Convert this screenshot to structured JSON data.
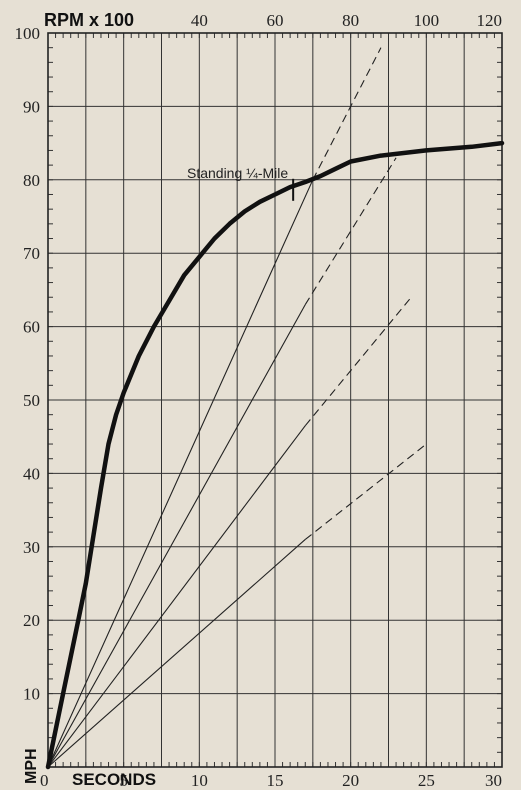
{
  "chart_data": {
    "type": "line",
    "title": "",
    "top_axis_title": "RPM x 100",
    "xlabel": "SECONDS",
    "ylabel": "MPH",
    "xlim": [
      0,
      30
    ],
    "ylim": [
      0,
      100
    ],
    "rpm_lim": [
      0,
      120
    ],
    "x_ticks": [
      "0",
      "5",
      "10",
      "15",
      "20",
      "25",
      "30"
    ],
    "x_tick_values": [
      0,
      5,
      10,
      15,
      20,
      25,
      30
    ],
    "y_ticks": [
      "10",
      "20",
      "30",
      "40",
      "50",
      "60",
      "70",
      "80",
      "90",
      "100"
    ],
    "y_tick_values": [
      10,
      20,
      30,
      40,
      50,
      60,
      70,
      80,
      90,
      100
    ],
    "rpm_ticks": [
      "40",
      "60",
      "80",
      "100",
      "120"
    ],
    "rpm_tick_values": [
      40,
      60,
      80,
      100,
      120
    ],
    "grid": true,
    "series": [
      {
        "style": "thick-solid",
        "points": [
          [
            0,
            0
          ],
          [
            1,
            10
          ],
          [
            2,
            20
          ],
          [
            2.5,
            25
          ],
          [
            3,
            31.5
          ],
          [
            3.5,
            38
          ],
          [
            4,
            44
          ],
          [
            4.5,
            48
          ],
          [
            5,
            51
          ],
          [
            6,
            56
          ],
          [
            7,
            60
          ],
          [
            8,
            63.5
          ],
          [
            9,
            67
          ],
          [
            10,
            69.5
          ],
          [
            11,
            72
          ],
          [
            12,
            74
          ],
          [
            13,
            75.7
          ],
          [
            14,
            77
          ],
          [
            15,
            78
          ],
          [
            16,
            79
          ],
          [
            17,
            79.7
          ],
          [
            18,
            80.5
          ],
          [
            19,
            81.5
          ],
          [
            20,
            82.5
          ],
          [
            22,
            83.3
          ],
          [
            25,
            84
          ],
          [
            28,
            84.5
          ],
          [
            30,
            85
          ]
        ]
      }
    ],
    "gear_lines": [
      {
        "solid_to": [
          17.5,
          80
        ],
        "dashed_to": [
          22,
          98
        ]
      },
      {
        "solid_to": [
          17,
          63
        ],
        "dashed_to": [
          23,
          83
        ]
      },
      {
        "solid_to": [
          17,
          46.5
        ],
        "dashed_to": [
          24,
          64
        ]
      },
      {
        "solid_to": [
          17,
          31
        ],
        "dashed_to": [
          25,
          44
        ]
      }
    ],
    "annotations": [
      {
        "text": "Standing ¼-Mile",
        "marker_x": 16.2,
        "marker_y": 78.5
      }
    ]
  }
}
